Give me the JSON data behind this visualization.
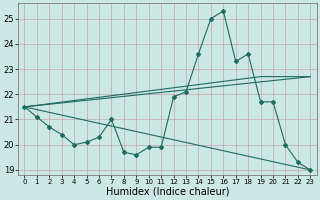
{
  "xlabel": "Humidex (Indice chaleur)",
  "xlim": [
    -0.5,
    23.5
  ],
  "ylim": [
    18.8,
    25.6
  ],
  "yticks": [
    19,
    20,
    21,
    22,
    23,
    24,
    25
  ],
  "xticks": [
    0,
    1,
    2,
    3,
    4,
    5,
    6,
    7,
    8,
    9,
    10,
    11,
    12,
    13,
    14,
    15,
    16,
    17,
    18,
    19,
    20,
    21,
    22,
    23
  ],
  "bg_color": "#cce8e4",
  "line_color": "#1e6b62",
  "grid_color_v": "#c4a8a8",
  "grid_color_h": "#c4a8a8",
  "main_series_x": [
    0,
    1,
    2,
    3,
    4,
    5,
    6,
    7,
    8,
    9,
    10,
    11,
    12,
    13,
    14,
    15,
    16,
    17,
    18,
    19,
    20,
    21,
    22,
    23
  ],
  "main_series_y": [
    21.5,
    21.1,
    20.7,
    20.4,
    20.0,
    20.1,
    20.3,
    21.0,
    19.7,
    19.6,
    19.9,
    19.9,
    21.9,
    22.1,
    23.6,
    25.0,
    25.3,
    23.3,
    23.6,
    21.7,
    21.7,
    20.0,
    19.3,
    19.0
  ],
  "trend_lines": [
    {
      "x": [
        0,
        23
      ],
      "y": [
        21.5,
        22.7
      ]
    },
    {
      "x": [
        0,
        23
      ],
      "y": [
        21.5,
        19.0
      ]
    },
    {
      "x": [
        0,
        19,
        23
      ],
      "y": [
        21.5,
        22.7,
        22.7
      ]
    }
  ]
}
